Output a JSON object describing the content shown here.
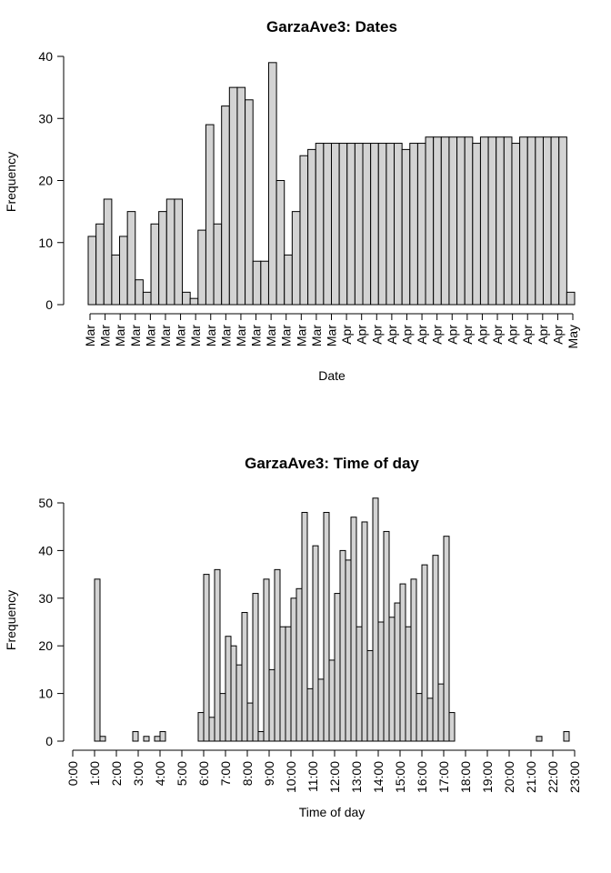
{
  "chart_data": [
    {
      "type": "bar",
      "title": "GarzaAve3: Dates",
      "xlabel": "Date",
      "ylabel": "Frequency",
      "ylim": [
        0,
        40
      ],
      "yticks": [
        "0",
        "10",
        "20",
        "30",
        "40"
      ],
      "x_tick_labels": [
        "Mar",
        "Mar",
        "Mar",
        "Mar",
        "Mar",
        "Mar",
        "Mar",
        "Mar",
        "Mar",
        "Mar",
        "Mar",
        "Mar",
        "Mar",
        "Mar",
        "Mar",
        "Mar",
        "Mar",
        "Apr",
        "Apr",
        "Apr",
        "Apr",
        "Apr",
        "Apr",
        "Apr",
        "Apr",
        "Apr",
        "Apr",
        "Apr",
        "Apr",
        "Apr",
        "Apr",
        "Apr",
        "May"
      ],
      "values": [
        11,
        13,
        17,
        8,
        11,
        15,
        4,
        2,
        13,
        15,
        17,
        17,
        2,
        1,
        12,
        29,
        13,
        32,
        35,
        35,
        33,
        7,
        7,
        39,
        20,
        8,
        15,
        24,
        25,
        26,
        26,
        26,
        26,
        26,
        26,
        26,
        26,
        26,
        26,
        26,
        25,
        26,
        26,
        27,
        27,
        27,
        27,
        27,
        27,
        26,
        27,
        27,
        27,
        27,
        26,
        27,
        27,
        27,
        27,
        27,
        27,
        2
      ],
      "grid": false
    },
    {
      "type": "bar",
      "title": "GarzaAve3: Time of day",
      "xlabel": "Time of day",
      "ylabel": "Frequency",
      "ylim": [
        0,
        50
      ],
      "xlim_hours": [
        0,
        23
      ],
      "bin_width_hours": 0.25,
      "yticks": [
        "0",
        "10",
        "20",
        "30",
        "40",
        "50"
      ],
      "x_tick_labels": [
        "0:00",
        "1:00",
        "2:00",
        "3:00",
        "4:00",
        "5:00",
        "6:00",
        "7:00",
        "8:00",
        "9:00",
        "10:00",
        "11:00",
        "12:00",
        "13:00",
        "14:00",
        "15:00",
        "16:00",
        "17:00",
        "18:00",
        "19:00",
        "20:00",
        "21:00",
        "22:00",
        "23:00"
      ],
      "values": [
        0,
        0,
        0,
        0,
        34,
        1,
        0,
        0,
        0,
        0,
        0,
        2,
        0,
        1,
        0,
        1,
        2,
        0,
        0,
        0,
        0,
        0,
        0,
        6,
        35,
        5,
        36,
        10,
        22,
        20,
        16,
        27,
        8,
        31,
        2,
        34,
        15,
        36,
        24,
        24,
        30,
        32,
        48,
        11,
        41,
        13,
        48,
        17,
        31,
        40,
        38,
        47,
        24,
        46,
        19,
        51,
        25,
        44,
        26,
        29,
        33,
        24,
        34,
        10,
        37,
        9,
        39,
        12,
        43,
        6,
        0,
        0,
        0,
        0,
        0,
        0,
        0,
        0,
        0,
        0,
        0,
        0,
        0,
        0,
        0,
        1,
        0,
        0,
        0,
        0,
        2
      ],
      "grid": false
    }
  ]
}
